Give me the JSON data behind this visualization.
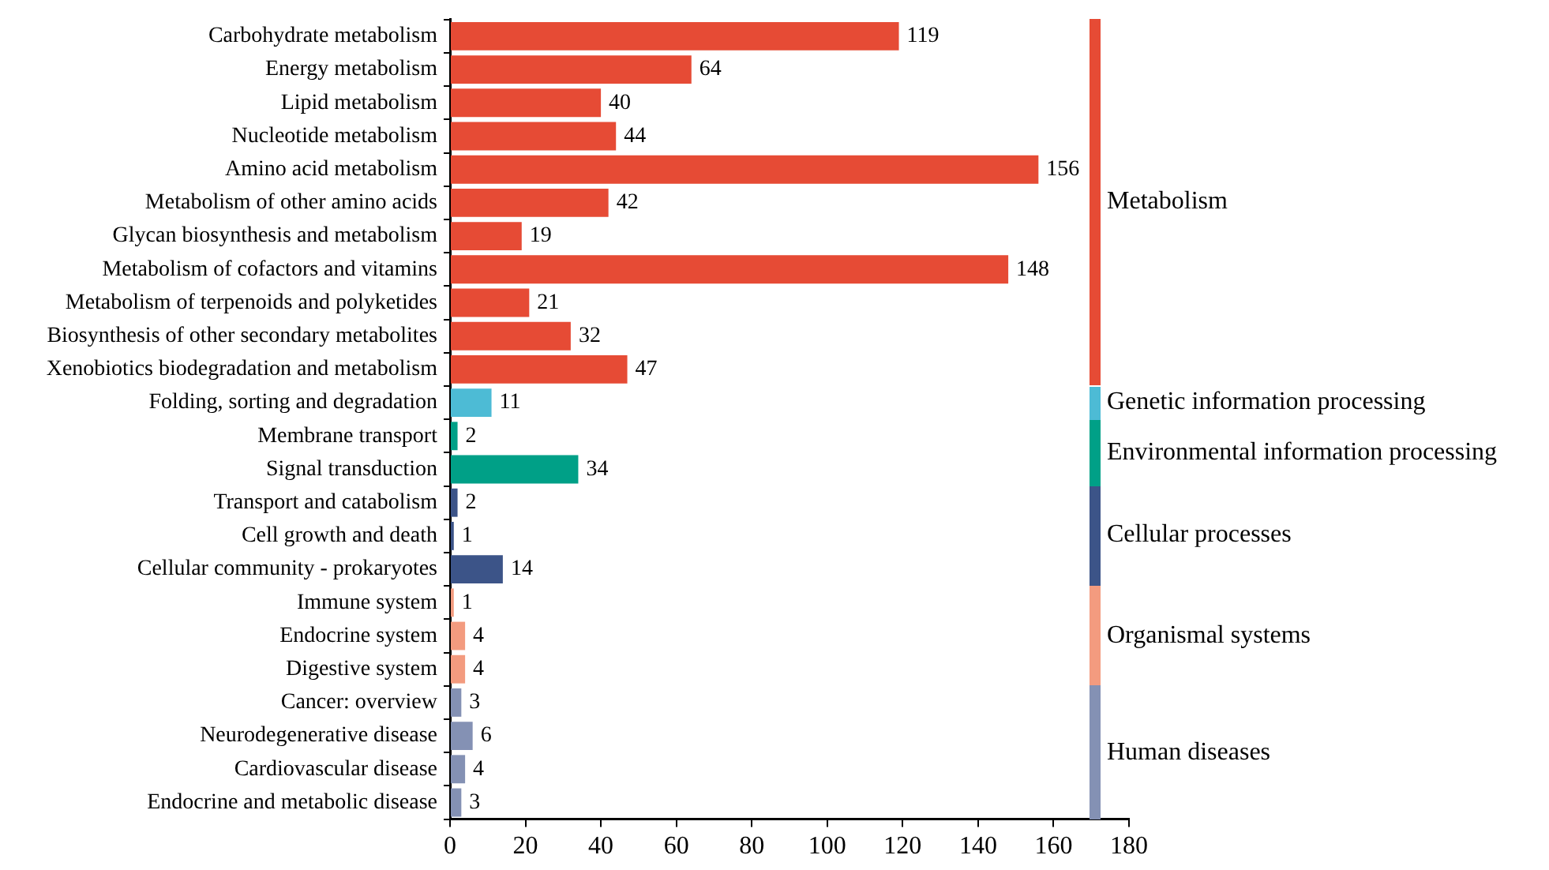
{
  "chart_data": {
    "type": "bar",
    "orientation": "horizontal",
    "stacked": true,
    "data_labels": true,
    "grid": false,
    "legend": "right",
    "categories": [
      "Carbohydrate metabolism",
      "Energy metabolism",
      "Lipid metabolism",
      "Nucleotide metabolism",
      "Amino acid metabolism",
      "Metabolism of other amino acids",
      "Glycan biosynthesis and metabolism",
      "Metabolism of cofactors and vitamins",
      "Metabolism of terpenoids and polyketides",
      "Biosynthesis of other secondary metabolites",
      "Xenobiotics biodegradation and metabolism",
      "Folding, sorting and degradation",
      "Membrane transport",
      "Signal transduction",
      "Transport and catabolism",
      "Cell growth and death",
      "Cellular community - prokaryotes",
      "Immune system",
      "Endocrine system",
      "Digestive system",
      "Cancer: overview",
      "Neurodegenerative disease",
      "Cardiovascular disease",
      "Endocrine and metabolic disease"
    ],
    "series": [
      {
        "name": "Metabolism",
        "color": "#e64b35",
        "values": [
          119,
          64,
          40,
          44,
          156,
          42,
          19,
          148,
          21,
          32,
          47,
          null,
          null,
          null,
          null,
          null,
          null,
          null,
          null,
          null,
          null,
          null,
          null,
          null
        ]
      },
      {
        "name": "Genetic information processing",
        "color": "#4dbbd5",
        "values": [
          null,
          null,
          null,
          null,
          null,
          null,
          null,
          null,
          null,
          null,
          null,
          11,
          null,
          null,
          null,
          null,
          null,
          null,
          null,
          null,
          null,
          null,
          null,
          null
        ]
      },
      {
        "name": "Environmental information processing",
        "color": "#00a087",
        "values": [
          null,
          null,
          null,
          null,
          null,
          null,
          null,
          null,
          null,
          null,
          null,
          null,
          2,
          34,
          null,
          null,
          null,
          null,
          null,
          null,
          null,
          null,
          null,
          null
        ]
      },
      {
        "name": "Cellular processes",
        "color": "#3c5488",
        "values": [
          null,
          null,
          null,
          null,
          null,
          null,
          null,
          null,
          null,
          null,
          null,
          null,
          null,
          null,
          2,
          1,
          14,
          null,
          null,
          null,
          null,
          null,
          null,
          null
        ]
      },
      {
        "name": "Organismal systems",
        "color": "#f39b7f",
        "values": [
          null,
          null,
          null,
          null,
          null,
          null,
          null,
          null,
          null,
          null,
          null,
          null,
          null,
          null,
          null,
          null,
          null,
          1,
          4,
          4,
          null,
          null,
          null,
          null
        ]
      },
      {
        "name": "Human diseases",
        "color": "#8491b4",
        "values": [
          null,
          null,
          null,
          null,
          null,
          null,
          null,
          null,
          null,
          null,
          null,
          null,
          null,
          null,
          null,
          null,
          null,
          null,
          null,
          null,
          3,
          6,
          4,
          3
        ]
      }
    ],
    "xlim": [
      0,
      180
    ],
    "xticks": [
      0,
      20,
      40,
      60,
      80,
      100,
      120,
      140,
      160,
      180
    ]
  }
}
